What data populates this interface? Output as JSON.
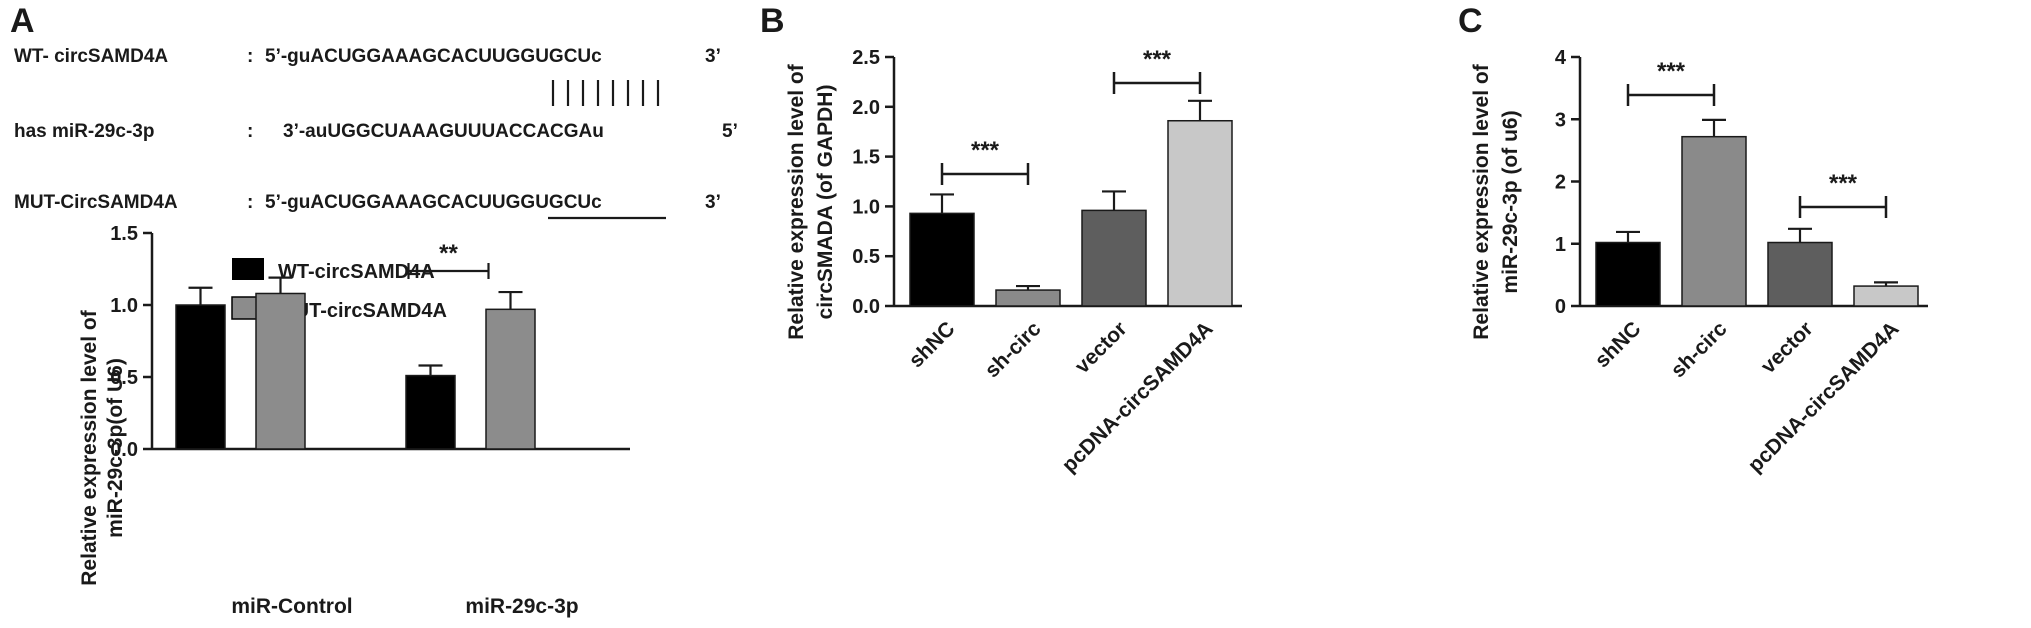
{
  "panels": {
    "A": {
      "letter": "A",
      "alignment": {
        "wt_label": "WT- circSAMD4A",
        "wt_colon": ":",
        "wt_seq": "5’-guACUGGAAAGCACUUGGUGCUc",
        "wt_end": "3’",
        "mir_label": "has miR-29c-3p",
        "mir_colon": ":",
        "mir_seq": "3’-auUGGCUAAAGUUUACCACGAu",
        "mir_end": "5’",
        "mut_label": "MUT-CircSAMD4A",
        "mut_colon": ":",
        "mut_seq": "5’-guACUGGAAAGCACUUGGUGCUc",
        "mut_end": "3’"
      }
    },
    "B": {
      "letter": "B"
    },
    "C": {
      "letter": "C"
    }
  },
  "chart_data": [
    {
      "panel": "A",
      "type": "bar",
      "categories": [
        "miR-Control",
        "miR-29c-3p"
      ],
      "series": [
        {
          "name": "WT-circSAMD4A",
          "values": [
            1.0,
            0.51
          ],
          "errors": [
            0.12,
            0.07
          ],
          "color": "#000000"
        },
        {
          "name": "MUT-circSAMD4A",
          "values": [
            1.08,
            0.97
          ],
          "errors": [
            0.11,
            0.12
          ],
          "color": "#8c8c8c"
        }
      ],
      "ylabel_line1": "Relative expression level of",
      "ylabel_line2": "miR-29c-3p(of U6)",
      "ylim": [
        0.0,
        1.5
      ],
      "yticks": [
        "0.0",
        "0.5",
        "1.0",
        "1.5"
      ],
      "significance": [
        {
          "label": "**",
          "group": 1
        }
      ],
      "legend": "top-left"
    },
    {
      "panel": "B",
      "type": "bar",
      "categories": [
        "shNC",
        "sh-circ",
        "vector",
        "pcDNA-circSAMD4A"
      ],
      "values": [
        0.93,
        0.16,
        0.96,
        1.86
      ],
      "errors": [
        0.19,
        0.04,
        0.19,
        0.2
      ],
      "colors": [
        "#000000",
        "#8a8a8a",
        "#5e5e5e",
        "#c8c8c8"
      ],
      "ylabel_line1": "Relative  expression level of",
      "ylabel_line2": "circSMADA (of GAPDH)",
      "ylim": [
        0.0,
        2.5
      ],
      "yticks": [
        "0.0",
        "0.5",
        "1.0",
        "1.5",
        "2.0",
        "2.5"
      ],
      "significance": [
        {
          "label": "***",
          "from": 0,
          "to": 1
        },
        {
          "label": "***",
          "from": 2,
          "to": 3
        }
      ]
    },
    {
      "panel": "C",
      "type": "bar",
      "categories": [
        "shNC",
        "sh-circ",
        "vector",
        "pcDNA-circSAMD4A"
      ],
      "values": [
        1.02,
        2.72,
        1.02,
        0.32
      ],
      "errors": [
        0.17,
        0.27,
        0.22,
        0.06
      ],
      "colors": [
        "#000000",
        "#8a8a8a",
        "#5e5e5e",
        "#c8c8c8"
      ],
      "ylabel_line1": "Relative  expression level of",
      "ylabel_line2": "miR-29c-3p (of u6)",
      "ylim": [
        0,
        4
      ],
      "yticks": [
        "0",
        "1",
        "2",
        "3",
        "4"
      ],
      "significance": [
        {
          "label": "***",
          "from": 0,
          "to": 1
        },
        {
          "label": "***",
          "from": 2,
          "to": 3
        }
      ]
    }
  ]
}
